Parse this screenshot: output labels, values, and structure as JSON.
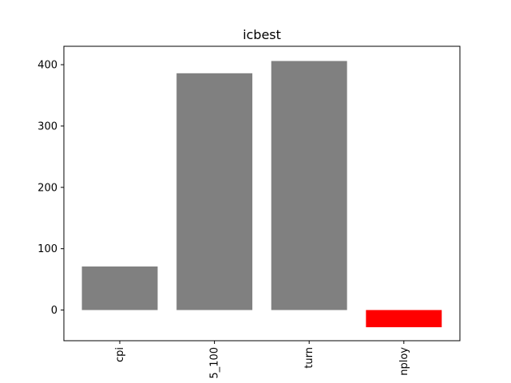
{
  "chart_data": {
    "type": "bar",
    "title": "icbest",
    "categories": [
      "cpi",
      "5_100",
      "turn",
      "nploy"
    ],
    "values": [
      71,
      386,
      406,
      -28
    ],
    "colors": [
      "#808080",
      "#808080",
      "#808080",
      "#ff0000"
    ],
    "ylim": [
      -50,
      430
    ],
    "yticks": [
      0,
      100,
      200,
      300,
      400
    ],
    "xlabel": "",
    "ylabel": "",
    "grid": false
  }
}
